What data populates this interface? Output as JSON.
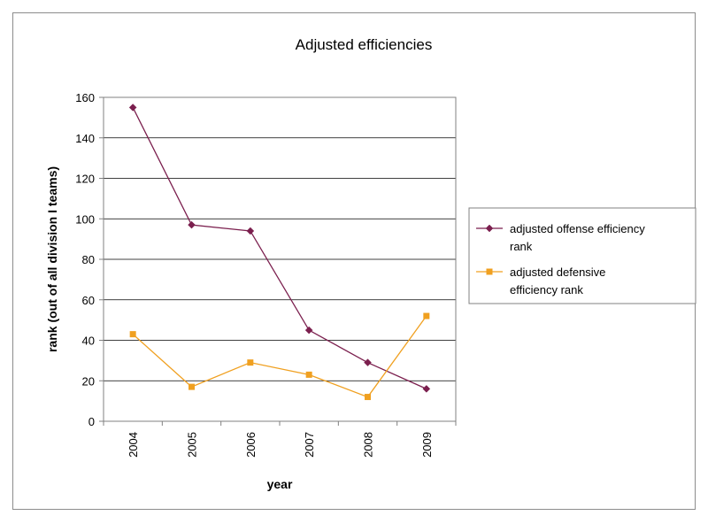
{
  "chart_data": {
    "type": "line",
    "title": "Adjusted efficiencies",
    "xlabel": "year",
    "ylabel": "rank (out of all division I teams)",
    "categories": [
      "2004",
      "2005",
      "2006",
      "2007",
      "2008",
      "2009"
    ],
    "ylim": [
      0,
      160
    ],
    "yticks": [
      0,
      20,
      40,
      60,
      80,
      100,
      120,
      140,
      160
    ],
    "grid": true,
    "legend_position": "right",
    "series": [
      {
        "name": "adjusted offense efficiency rank",
        "legend_lines": [
          "adjusted offense efficiency",
          "rank"
        ],
        "values": [
          155,
          97,
          94,
          45,
          29,
          16
        ],
        "color": "#7b1f4e",
        "marker": "diamond"
      },
      {
        "name": "adjusted defensive efficiency rank",
        "legend_lines": [
          "adjusted defensive",
          "efficiency rank"
        ],
        "values": [
          43,
          17,
          29,
          23,
          12,
          52
        ],
        "color": "#f0a020",
        "marker": "square"
      }
    ]
  }
}
